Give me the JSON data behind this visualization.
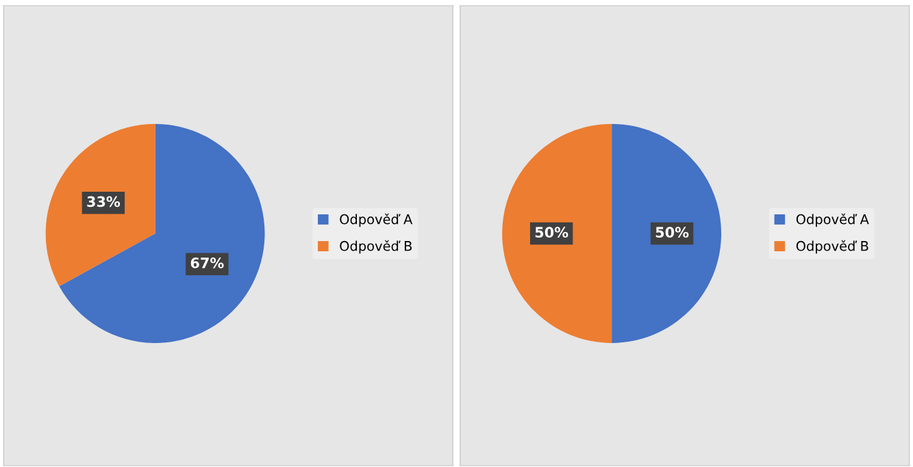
{
  "chart_data": [
    {
      "type": "pie",
      "categories": [
        "Odpověď A",
        "Odpověď B"
      ],
      "values": [
        67,
        33
      ],
      "colors": [
        "#4472c4",
        "#ed7d31"
      ],
      "value_labels": [
        "67%",
        "33%"
      ],
      "legend": "right"
    },
    {
      "type": "pie",
      "categories": [
        "Odpověď A",
        "Odpověď B"
      ],
      "values": [
        50,
        50
      ],
      "colors": [
        "#4472c4",
        "#ed7d31"
      ],
      "value_labels": [
        "50%",
        "50%"
      ],
      "legend": "right"
    }
  ]
}
